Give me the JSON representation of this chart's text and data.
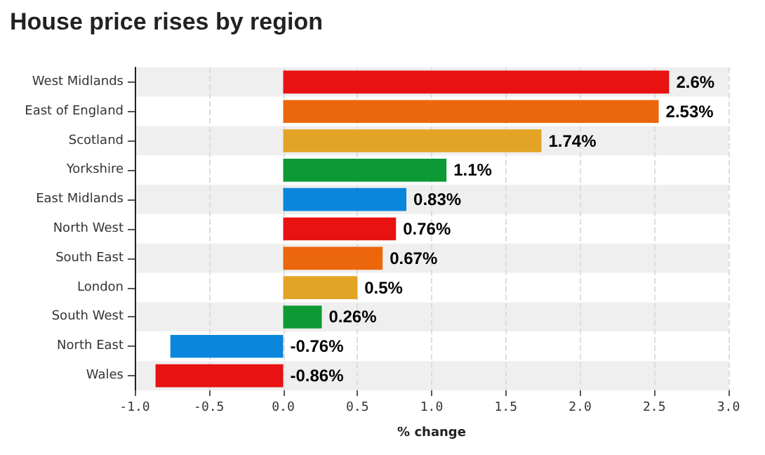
{
  "chart_data": {
    "type": "bar",
    "orientation": "horizontal",
    "title": "House price rises by region",
    "xlabel": "% change",
    "categories": [
      "West Midlands",
      "East of England",
      "Scotland",
      "Yorkshire",
      "East Midlands",
      "North West",
      "South East",
      "London",
      "South West",
      "North East",
      "Wales"
    ],
    "values": [
      2.6,
      2.53,
      1.74,
      1.1,
      0.83,
      0.76,
      0.67,
      0.5,
      0.26,
      -0.76,
      -0.86
    ],
    "value_labels": [
      "2.6%",
      "2.53%",
      "1.74%",
      "1.1%",
      "0.83%",
      "0.76%",
      "0.67%",
      "0.5%",
      "0.26%",
      "-0.76%",
      "-0.86%"
    ],
    "colors": [
      "#e81212",
      "#ec660c",
      "#e3a426",
      "#0d9a35",
      "#0a86dc",
      "#e81212",
      "#ec660c",
      "#e3a426",
      "#0d9a35",
      "#0a86dc",
      "#e81212"
    ],
    "xlim": [
      -1,
      3
    ],
    "xticks": [
      {
        "value": -1,
        "label": "-1.0"
      },
      {
        "value": -0.5,
        "label": "-0.5"
      },
      {
        "value": 0,
        "label": "0.0"
      },
      {
        "value": 0.5,
        "label": "0.5"
      },
      {
        "value": 1,
        "label": "1.0"
      },
      {
        "value": 1.5,
        "label": "1.5"
      },
      {
        "value": 2,
        "label": "2.0"
      },
      {
        "value": 2.5,
        "label": "2.5"
      },
      {
        "value": 3,
        "label": "3.0"
      }
    ],
    "grid": "x"
  }
}
